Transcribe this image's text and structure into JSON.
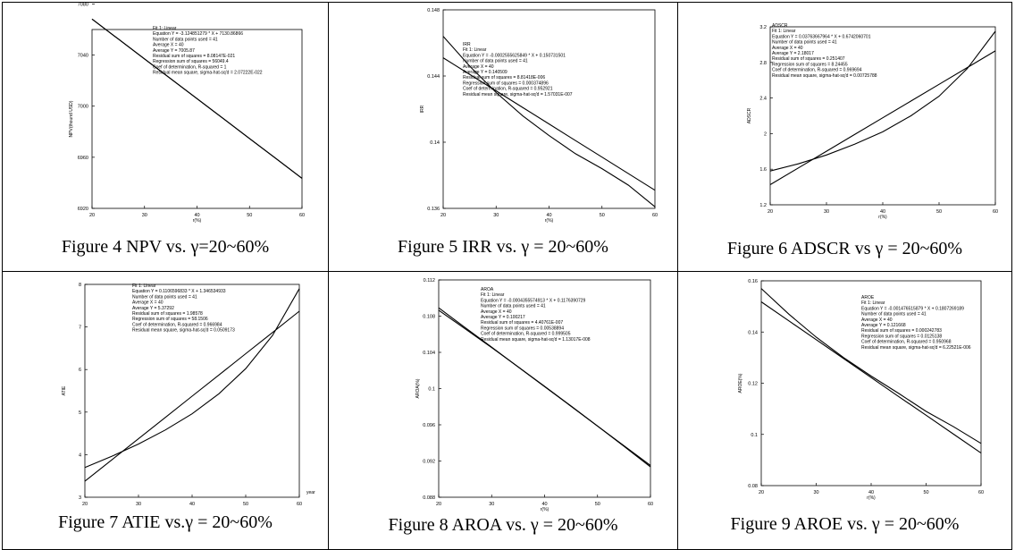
{
  "panels": [
    {
      "caption": "Figure 4 NPV vs. γ=20~60%",
      "chart_data": {
        "type": "line",
        "xlabel": "r(%)",
        "ylabel": "NPV(thound USD)",
        "xlim": [
          20,
          60
        ],
        "ylim": [
          6920,
          7060
        ],
        "xticks": [
          20,
          30,
          40,
          50,
          60
        ],
        "yticks": [
          6920,
          6960,
          7000,
          7040,
          7080
        ],
        "series": [
          {
            "x": [
              20,
              25,
              30,
              35,
              40,
              45,
              50,
              55,
              60
            ],
            "y": [
              7068.2,
              7052.6,
              7037.0,
              7021.4,
              7005.9,
              6990.3,
              6974.7,
              6959.1,
              6943.5
            ]
          },
          {
            "x": [
              20,
              25,
              30,
              35,
              40,
              45,
              50,
              55,
              60
            ],
            "y": [
              7068.2,
              7052.6,
              7037.0,
              7021.4,
              7005.9,
              6990.3,
              6974.7,
              6959.1,
              6943.5
            ]
          }
        ],
        "annotation": [
          "Fit 1: Linear",
          "Equation Y = -3.124851279 * X + 7130.86866",
          "Number of data points used = 41",
          "Average X = 40",
          "Average Y = 7005.87",
          "Residual sum of squares = 8.08147E-021",
          "Regression sum of squares = 56049.4",
          "Coef of determination, R-squared = 1",
          "Residual mean square, sigma-hat-sq'd = 2.07222E-022"
        ]
      }
    },
    {
      "caption": "Figure 5 IRR vs. γ = 20~60%",
      "chart_data": {
        "type": "line",
        "xlabel": "r(%)",
        "ylabel": "IRR",
        "xlim": [
          20,
          60
        ],
        "ylim": [
          0.136,
          0.148
        ],
        "xticks": [
          20,
          30,
          40,
          50,
          60
        ],
        "yticks": [
          0.136,
          0.14,
          0.144,
          0.148
        ],
        "series": [
          {
            "x": [
              20,
              25,
              30,
              35,
              40,
              45,
              50,
              55,
              60
            ],
            "y": [
              0.1451,
              0.1441,
              0.1431,
              0.1421,
              0.1411,
              0.1401,
              0.1391,
              0.1381,
              0.1371
            ]
          },
          {
            "x": [
              20,
              25,
              30,
              35,
              40,
              45,
              50,
              55,
              60
            ],
            "y": [
              0.1464,
              0.1446,
              0.143,
              0.1416,
              0.1404,
              0.1393,
              0.1384,
              0.1374,
              0.1361
            ]
          }
        ],
        "annotation": [
          "IRR",
          "Fit 1: Linear",
          "Equation Y = -0.0002555625849 * X + 0.150731501",
          "Number of data points used = 41",
          "Average X = 40",
          "Average Y = 0.140509",
          "Residual sum of squares = 8.81418E-006",
          "Regression sum of squares = 0.000374896",
          "Coef of determination, R-squared = 0.952921",
          "Residual mean square, sigma-hat-sq'd = 1.57031E-007"
        ]
      }
    },
    {
      "caption": "Figure 6 ADSCR vs γ = 20~60%",
      "chart_data": {
        "type": "line",
        "xlabel": "r(%)",
        "ylabel": "ADSCR",
        "xlim": [
          20,
          60
        ],
        "ylim": [
          1.2,
          3.2
        ],
        "xticks": [
          20,
          30,
          40,
          50,
          60
        ],
        "yticks": [
          1.2,
          1.6,
          2,
          2.4,
          2.8,
          3.2
        ],
        "series": [
          {
            "x": [
              20,
              25,
              30,
              35,
              40,
              45,
              50,
              55,
              60
            ],
            "y": [
              1.426,
              1.614,
              1.802,
              1.99,
              2.178,
              2.366,
              2.554,
              2.742,
              2.93
            ]
          },
          {
            "x": [
              20,
              25,
              30,
              35,
              40,
              45,
              50,
              55,
              60
            ],
            "y": [
              1.58,
              1.66,
              1.76,
              1.88,
              2.02,
              2.2,
              2.42,
              2.73,
              3.15
            ]
          }
        ],
        "annotation": [
          "ADSCR",
          "Fit 1: Linear",
          "Equation Y = 0.03763667964 * X + 0.6742060701",
          "Number of data points used = 41",
          "Average X = 40",
          "Average Y = 2.18017",
          "Residual sum of squares = 0.251407",
          "Regression sum of squares = 8.24455",
          "Coef of determination, R-squared = 0.969694",
          "Residual mean square, sigma-hat-sq'd = 0.00725788"
        ]
      }
    },
    {
      "caption": "Figure 7 ATIE vs.γ = 20~60%",
      "chart_data": {
        "type": "line",
        "xlabel": "year",
        "ylabel": "ATIE",
        "xlim": [
          20,
          60
        ],
        "ylim": [
          3,
          8
        ],
        "xticks": [
          20,
          30,
          40,
          50,
          60
        ],
        "yticks": [
          3,
          4,
          5,
          6,
          7,
          8
        ],
        "series": [
          {
            "x": [
              20,
              25,
              30,
              35,
              40,
              45,
              50,
              55,
              60
            ],
            "y": [
              3.377,
              3.876,
              4.375,
              4.874,
              5.373,
              5.872,
              6.371,
              6.87,
              7.369
            ]
          },
          {
            "x": [
              20,
              25,
              30,
              35,
              40,
              45,
              50,
              55,
              60
            ],
            "y": [
              3.7,
              3.96,
              4.25,
              4.58,
              4.96,
              5.43,
              6.02,
              6.8,
              7.9
            ]
          }
        ],
        "annotation": [
          "Fit 1: Linear",
          "Equation Y = 0.1106596833 * X + 1.346534933",
          "Number of data points used = 41",
          "Average X = 40",
          "Average Y = 5.37292",
          "Residual sum of squares = 1.98578",
          "Regression sum of squares = 58.1506",
          "Coef of determination, R-squared = 0.966984",
          "Residual mean square, sigma-hat-sq'd = 0.0509173"
        ]
      }
    },
    {
      "caption": "Figure 8 AROA vs. γ = 20~60%",
      "chart_data": {
        "type": "line",
        "xlabel": "r(%)",
        "ylabel": "AROA(%)",
        "xlim": [
          20,
          60
        ],
        "ylim": [
          0.088,
          0.112
        ],
        "xticks": [
          20,
          30,
          40,
          50,
          60
        ],
        "yticks": [
          0.088,
          0.092,
          0.096,
          0.1,
          0.104,
          0.108,
          0.112
        ],
        "series": [
          {
            "x": [
              20,
              25,
              30,
              35,
              40,
              45,
              50,
              55,
              60
            ],
            "y": [
              0.10892,
              0.10674,
              0.10457,
              0.10239,
              0.10022,
              0.09804,
              0.09586,
              0.09369,
              0.09151
            ]
          },
          {
            "x": [
              20,
              25,
              30,
              35,
              40,
              45,
              50,
              55,
              60
            ],
            "y": [
              0.10865,
              0.1066,
              0.10452,
              0.1024,
              0.10025,
              0.09807,
              0.09586,
              0.09362,
              0.09135
            ]
          }
        ],
        "annotation": [
          "AROA",
          "Fit 1: Linear",
          "Equation Y = -0.0004355574913 * X + 0.1176390729",
          "Number of data points used = 41",
          "Average X = 40",
          "Average Y = 0.100217",
          "Residual sum of squares = 4.40761E-007",
          "Regression sum of squares = 0.00538894",
          "Coef of determination, R-squared = 0.999505",
          "Residual mean square, sigma-hat-sq'd = 1.13017E-008"
        ]
      }
    },
    {
      "caption": "Figure 9 AROE vs. γ = 20~60%",
      "chart_data": {
        "type": "line",
        "xlabel": "r(%)",
        "ylabel": "AROE(%)",
        "xlim": [
          20,
          60
        ],
        "ylim": [
          0.08,
          0.16
        ],
        "xticks": [
          20,
          30,
          40,
          50,
          60
        ],
        "yticks": [
          0.08,
          0.1,
          0.12,
          0.14,
          0.16
        ],
        "series": [
          {
            "x": [
              20,
              25,
              30,
              35,
              40,
              45,
              50,
              55,
              60
            ],
            "y": [
              0.1518,
              0.1444,
              0.137,
              0.1296,
              0.1222,
              0.1148,
              0.1075,
              0.1001,
              0.0927
            ]
          },
          {
            "x": [
              20,
              25,
              30,
              35,
              40,
              45,
              50,
              55,
              60
            ],
            "y": [
              0.157,
              0.147,
              0.138,
              0.13,
              0.1228,
              0.116,
              0.109,
              0.103,
              0.0965
            ]
          }
        ],
        "annotation": [
          "AROE",
          "Fit 1: Linear",
          "Equation Y = -0.001476515879 * X + 0.1807269189",
          "Number of data points used = 41",
          "Average X = 40",
          "Average Y = 0.121668",
          "Residual sum of squares = 0.000242783",
          "Regression sum of squares = 0.0125138",
          "Coef of determination, R-squared = 0.950968",
          "Residual mean square, sigma-hat-sq'd = 6.22521E-006"
        ]
      }
    }
  ]
}
